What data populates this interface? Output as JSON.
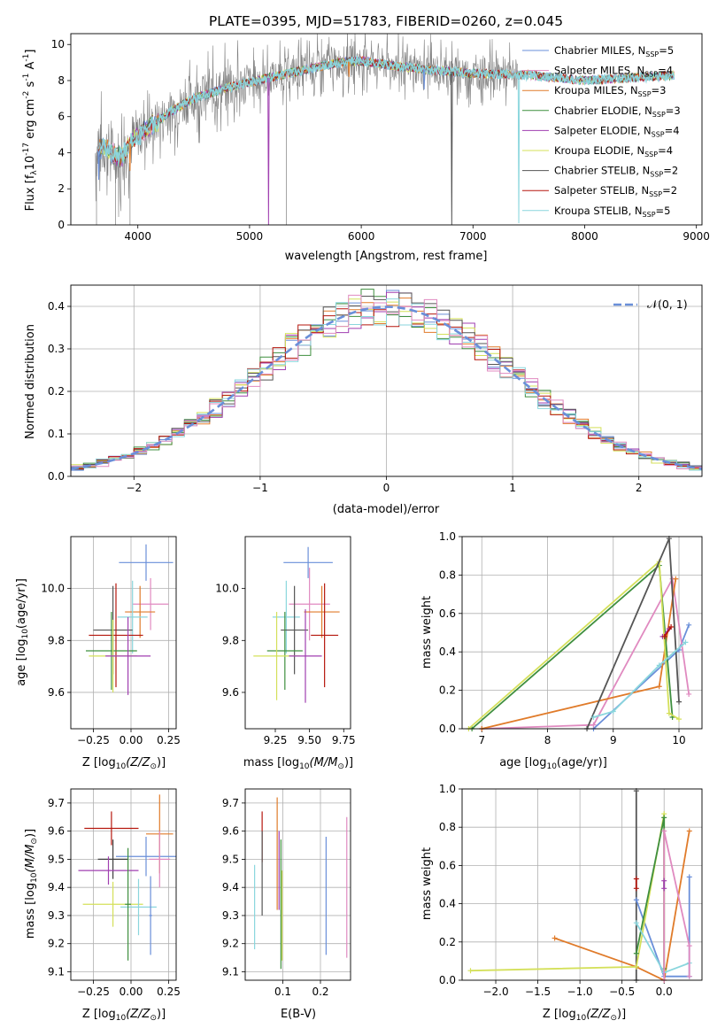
{
  "title": "PLATE=0395, MJD=51783, FIBERID=0260, z=0.045",
  "colors": [
    "#6a8fd9",
    "#e07b2a",
    "#3f8f3f",
    "#a03fb0",
    "#d4e05a",
    "#555555",
    "#b5170e",
    "#8ad6dd",
    "#e08ac0"
  ],
  "chart_data": [
    {
      "id": "spectrum",
      "type": "line",
      "title": "PLATE=0395, MJD=51783, FIBERID=0260, z=0.045",
      "xlabel": "wavelength [Angstrom, rest frame]",
      "ylabel_main": "Flux [f",
      "ylabel_sub1": "λ",
      "ylabel_mid": "10",
      "ylabel_sup1": "-17",
      "ylabel_tail1": " erg cm",
      "ylabel_sup2": "-2",
      "ylabel_tail2": " s",
      "ylabel_sup3": "-1",
      "ylabel_tail3": " A",
      "ylabel_sup4": "-1",
      "ylabel_end": "]",
      "xlim": [
        3400,
        9050
      ],
      "ylim": [
        0,
        10.6
      ],
      "xticks": [
        "4000",
        "5000",
        "6000",
        "7000",
        "8000",
        "9000"
      ],
      "xtick_values": [
        4000,
        5000,
        6000,
        7000,
        8000,
        9000
      ],
      "yticks": [
        "0",
        "2",
        "4",
        "6",
        "8",
        "10"
      ],
      "ytick_values": [
        0,
        2,
        4,
        6,
        8,
        10
      ],
      "data_color": "#808080",
      "data_anchors": [
        [
          3620,
          4.0
        ],
        [
          3700,
          4.3
        ],
        [
          3850,
          3.7
        ],
        [
          3950,
          4.7
        ],
        [
          4100,
          5.4
        ],
        [
          4300,
          6.3
        ],
        [
          4500,
          7.0
        ],
        [
          4800,
          7.6
        ],
        [
          5200,
          8.2
        ],
        [
          5500,
          8.6
        ],
        [
          5800,
          9.0
        ],
        [
          6000,
          9.1
        ],
        [
          6300,
          8.8
        ],
        [
          6600,
          8.6
        ],
        [
          7000,
          8.4
        ],
        [
          7500,
          8.3
        ],
        [
          8000,
          8.0
        ],
        [
          8500,
          8.2
        ],
        [
          8800,
          8.3
        ]
      ],
      "model_dips": [
        [
          3650,
          2.5
        ],
        [
          3930,
          3.0
        ],
        [
          5170,
          0.0
        ],
        [
          6810,
          0.0
        ],
        [
          7410,
          0.1
        ],
        [
          6563,
          7.5
        ],
        [
          5890,
          8.2
        ]
      ],
      "legend": [
        {
          "name_start": "Chabrier MILES, N",
          "sub": "SSP",
          "name_end": "=5",
          "color": "#6a8fd9"
        },
        {
          "name_start": "Salpeter MILES, N",
          "sub": "SSP",
          "name_end": "=4",
          "color": "#e08ac0"
        },
        {
          "name_start": "Kroupa MILES, N",
          "sub": "SSP",
          "name_end": "=3",
          "color": "#e07b2a"
        },
        {
          "name_start": "Chabrier ELODIE, N",
          "sub": "SSP",
          "name_end": "=3",
          "color": "#3f8f3f"
        },
        {
          "name_start": "Salpeter ELODIE, N",
          "sub": "SSP",
          "name_end": "=4",
          "color": "#a03fb0"
        },
        {
          "name_start": "Kroupa ELODIE, N",
          "sub": "SSP",
          "name_end": "=4",
          "color": "#d4e05a"
        },
        {
          "name_start": "Chabrier STELIB, N",
          "sub": "SSP",
          "name_end": "=2",
          "color": "#555555"
        },
        {
          "name_start": "Salpeter STELIB, N",
          "sub": "SSP",
          "name_end": "=2",
          "color": "#b5170e"
        },
        {
          "name_start": "Kroupa STELIB, N",
          "sub": "SSP",
          "name_end": "=5",
          "color": "#8ad6dd"
        }
      ]
    },
    {
      "id": "residuals",
      "type": "histogram",
      "xlabel": "(data-model)/error",
      "ylabel": "Normed distribution",
      "xlim": [
        -2.5,
        2.5
      ],
      "ylim": [
        0,
        0.45
      ],
      "xticks": [
        "−2",
        "−1",
        "0",
        "1",
        "2"
      ],
      "xtick_values": [
        -2,
        -1,
        0,
        1,
        2
      ],
      "yticks": [
        "0.0",
        "0.1",
        "0.2",
        "0.3",
        "0.4"
      ],
      "ytick_values": [
        0,
        0.1,
        0.2,
        0.3,
        0.4
      ],
      "bin_width": 0.1,
      "reference_label": "𝒩(0, 1)",
      "reference_color": "#6a8fd9"
    },
    {
      "id": "age-vs-Z",
      "type": "errorbar",
      "xlabel": "Z [log",
      "xlabel_sub": "10",
      "xlabel_end": "(Z/Z",
      "xlabel_sun": "⊙",
      "xlabel_close": ")]",
      "ylabel": "age  [log",
      "ylabel_sub": "10",
      "ylabel_end": "(age/yr)]",
      "xlim": [
        -0.4,
        0.3
      ],
      "ylim": [
        9.46,
        10.2
      ],
      "xticks": [
        "−0.25",
        "0.00",
        "0.25"
      ],
      "xtick_values": [
        -0.25,
        0.0,
        0.25
      ],
      "yticks": [
        "9.6",
        "9.8",
        "10.0"
      ],
      "ytick_values": [
        9.6,
        9.8,
        10.0
      ],
      "points": [
        {
          "x": 0.1,
          "y": 10.1,
          "xerr": 0.18,
          "yerr": 0.07,
          "color": "#6a8fd9"
        },
        {
          "x": 0.13,
          "y": 9.94,
          "xerr": 0.12,
          "yerr": 0.1,
          "color": "#e08ac0"
        },
        {
          "x": 0.06,
          "y": 9.91,
          "xerr": 0.1,
          "yerr": 0.1,
          "color": "#e07b2a"
        },
        {
          "x": 0.01,
          "y": 9.89,
          "xerr": 0.1,
          "yerr": 0.14,
          "color": "#8ad6dd"
        },
        {
          "x": -0.12,
          "y": 9.84,
          "xerr": 0.13,
          "yerr": 0.17,
          "color": "#555555"
        },
        {
          "x": -0.1,
          "y": 9.82,
          "xerr": 0.18,
          "yerr": 0.2,
          "color": "#b5170e"
        },
        {
          "x": -0.13,
          "y": 9.76,
          "xerr": 0.17,
          "yerr": 0.15,
          "color": "#3f8f3f"
        },
        {
          "x": -0.12,
          "y": 9.74,
          "xerr": 0.16,
          "yerr": 0.14,
          "color": "#d4e05a"
        },
        {
          "x": -0.02,
          "y": 9.74,
          "xerr": 0.15,
          "yerr": 0.15,
          "color": "#a03fb0"
        }
      ]
    },
    {
      "id": "age-vs-mass",
      "type": "errorbar",
      "xlabel": "mass [log",
      "xlabel_sub": "10",
      "xlabel_end": "(M/M",
      "xlabel_sun": "⊙",
      "xlabel_close": ")]",
      "xlim": [
        9.03,
        9.8
      ],
      "ylim": [
        9.46,
        10.2
      ],
      "xticks": [
        "9.25",
        "9.50",
        "9.75"
      ],
      "xtick_values": [
        9.25,
        9.5,
        9.75
      ],
      "yticks": [
        "9.6",
        "9.8",
        "10.0"
      ],
      "ytick_values": [
        9.6,
        9.8,
        10.0
      ],
      "points": [
        {
          "x": 9.49,
          "y": 10.1,
          "xerr": 0.18,
          "yerr": 0.06,
          "color": "#6a8fd9"
        },
        {
          "x": 9.5,
          "y": 9.94,
          "xerr": 0.15,
          "yerr": 0.14,
          "color": "#e08ac0"
        },
        {
          "x": 9.59,
          "y": 9.91,
          "xerr": 0.13,
          "yerr": 0.1,
          "color": "#e07b2a"
        },
        {
          "x": 9.33,
          "y": 9.89,
          "xerr": 0.1,
          "yerr": 0.14,
          "color": "#8ad6dd"
        },
        {
          "x": 9.39,
          "y": 9.84,
          "xerr": 0.1,
          "yerr": 0.17,
          "color": "#555555"
        },
        {
          "x": 9.61,
          "y": 9.82,
          "xerr": 0.1,
          "yerr": 0.2,
          "color": "#b5170e"
        },
        {
          "x": 9.32,
          "y": 9.76,
          "xerr": 0.13,
          "yerr": 0.15,
          "color": "#3f8f3f"
        },
        {
          "x": 9.26,
          "y": 9.74,
          "xerr": 0.17,
          "yerr": 0.17,
          "color": "#d4e05a"
        },
        {
          "x": 9.47,
          "y": 9.74,
          "xerr": 0.12,
          "yerr": 0.18,
          "color": "#a03fb0"
        }
      ]
    },
    {
      "id": "weight-vs-age",
      "type": "line",
      "xlabel": "age  [log",
      "xlabel_sub": "10",
      "xlabel_end": "(age/yr)]",
      "ylabel": "mass weight",
      "xlim": [
        6.7,
        10.35
      ],
      "ylim": [
        0,
        1.0
      ],
      "xticks": [
        "7",
        "8",
        "9",
        "10"
      ],
      "xtick_values": [
        7,
        8,
        9,
        10
      ],
      "yticks": [
        "0.0",
        "0.2",
        "0.4",
        "0.6",
        "0.8",
        "1.0"
      ],
      "ytick_values": [
        0,
        0.2,
        0.4,
        0.6,
        0.8,
        1.0
      ],
      "series": [
        {
          "color": "#6a8fd9",
          "points": [
            [
              8.7,
              0.0
            ],
            [
              10.0,
              0.41
            ],
            [
              10.15,
              0.54
            ]
          ]
        },
        {
          "color": "#e08ac0",
          "points": [
            [
              7.0,
              0.0
            ],
            [
              8.7,
              0.02
            ],
            [
              9.9,
              0.78
            ],
            [
              10.15,
              0.18
            ]
          ]
        },
        {
          "color": "#e07b2a",
          "points": [
            [
              7.0,
              0.0
            ],
            [
              9.7,
              0.22
            ],
            [
              9.95,
              0.78
            ]
          ]
        },
        {
          "color": "#3f8f3f",
          "points": [
            [
              6.85,
              0.0
            ],
            [
              9.7,
              0.85
            ],
            [
              9.9,
              0.06
            ]
          ]
        },
        {
          "color": "#a03fb0",
          "points": [
            [
              9.85,
              0.52
            ],
            [
              9.75,
              0.48
            ]
          ]
        },
        {
          "color": "#d4e05a",
          "points": [
            [
              6.8,
              0.0
            ],
            [
              9.7,
              0.87
            ],
            [
              9.85,
              0.08
            ],
            [
              10.0,
              0.05
            ]
          ]
        },
        {
          "color": "#555555",
          "points": [
            [
              8.6,
              0.0
            ],
            [
              9.85,
              0.99
            ],
            [
              10.0,
              0.14
            ]
          ]
        },
        {
          "color": "#b5170e",
          "points": [
            [
              9.78,
              0.48
            ],
            [
              9.88,
              0.53
            ]
          ]
        },
        {
          "color": "#8ad6dd",
          "points": [
            [
              8.7,
              0.06
            ],
            [
              9.0,
              0.09
            ],
            [
              9.7,
              0.33
            ],
            [
              10.1,
              0.45
            ]
          ]
        }
      ]
    },
    {
      "id": "mass-vs-Z",
      "type": "errorbar",
      "xlabel": "Z [log",
      "xlabel_sub": "10",
      "xlabel_end": "(Z/Z",
      "xlabel_sun": "⊙",
      "xlabel_close": ")]",
      "ylabel": "mass [log",
      "ylabel_sub": "10",
      "ylabel_end": "(M/M",
      "ylabel_sun": "⊙",
      "ylabel_close": ")]",
      "xlim": [
        -0.4,
        0.3
      ],
      "ylim": [
        9.07,
        9.75
      ],
      "xticks": [
        "−0.25",
        "0.00",
        "0.25"
      ],
      "xtick_values": [
        -0.25,
        0.0,
        0.25
      ],
      "yticks": [
        "9.1",
        "9.2",
        "9.3",
        "9.4",
        "9.5",
        "9.6",
        "9.7"
      ],
      "ytick_values": [
        9.1,
        9.2,
        9.3,
        9.4,
        9.5,
        9.6,
        9.7
      ],
      "points": [
        {
          "x": -0.13,
          "y": 9.61,
          "xerr": 0.18,
          "yerr": 0.06,
          "color": "#b5170e"
        },
        {
          "x": 0.19,
          "y": 9.59,
          "xerr": 0.09,
          "yerr": 0.14,
          "color": "#e07b2a"
        },
        {
          "x": 0.1,
          "y": 9.51,
          "xerr": 0.2,
          "yerr": 0.07,
          "color": "#6a8fd9"
        },
        {
          "x": -0.12,
          "y": 9.5,
          "xerr": 0.1,
          "yerr": 0.07,
          "color": "#3f3f3f"
        },
        {
          "x": -0.15,
          "y": 9.46,
          "xerr": 0.2,
          "yerr": 0.05,
          "color": "#a03fb0"
        },
        {
          "x": 0.19,
          "y": 9.5,
          "xerr": 0.07,
          "yerr": 0.1,
          "color": "#e08ac0"
        },
        {
          "x": -0.12,
          "y": 9.34,
          "xerr": 0.2,
          "yerr": 0.08,
          "color": "#d4e05a"
        },
        {
          "x": 0.05,
          "y": 9.33,
          "xerr": 0.12,
          "yerr": 0.1,
          "color": "#8ad6dd"
        },
        {
          "x": -0.02,
          "y": 9.34,
          "xerr": 0.02,
          "yerr": 0.2,
          "color": "#3f8f3f"
        },
        {
          "x": 0.13,
          "y": 9.3,
          "xerr": 0.01,
          "yerr": 0.14,
          "color": "#6a8fd9"
        }
      ]
    },
    {
      "id": "mass-vs-EBV",
      "type": "errorbar",
      "xlabel": "E(B-V)",
      "xlim": [
        0.0,
        0.28
      ],
      "ylim": [
        9.07,
        9.75
      ],
      "xticks": [
        "0.1",
        "0.2"
      ],
      "xtick_values": [
        0.1,
        0.2
      ],
      "yticks": [
        "9.1",
        "9.2",
        "9.3",
        "9.4",
        "9.5",
        "9.6",
        "9.7"
      ],
      "ytick_values": [
        9.1,
        9.2,
        9.3,
        9.4,
        9.5,
        9.6,
        9.7
      ],
      "points": [
        {
          "x": 0.045,
          "y": 9.58,
          "xerr": 0,
          "yerr": 0.09,
          "color": "#b5170e"
        },
        {
          "x": 0.045,
          "y": 9.45,
          "xerr": 0,
          "yerr": 0.15,
          "color": "#555555"
        },
        {
          "x": 0.025,
          "y": 9.33,
          "xerr": 0,
          "yerr": 0.15,
          "color": "#8ad6dd"
        },
        {
          "x": 0.085,
          "y": 9.52,
          "xerr": 0,
          "yerr": 0.2,
          "color": "#e07b2a"
        },
        {
          "x": 0.09,
          "y": 9.46,
          "xerr": 0,
          "yerr": 0.14,
          "color": "#a03fb0"
        },
        {
          "x": 0.095,
          "y": 9.34,
          "xerr": 0,
          "yerr": 0.23,
          "color": "#3f8f3f"
        },
        {
          "x": 0.098,
          "y": 9.3,
          "xerr": 0,
          "yerr": 0.16,
          "color": "#d4e05a"
        },
        {
          "x": 0.215,
          "y": 9.37,
          "xerr": 0,
          "yerr": 0.21,
          "color": "#6a8fd9"
        },
        {
          "x": 0.27,
          "y": 9.4,
          "xerr": 0,
          "yerr": 0.25,
          "color": "#e08ac0"
        }
      ]
    },
    {
      "id": "weight-vs-Z",
      "type": "line",
      "xlabel": "Z [log",
      "xlabel_sub": "10",
      "xlabel_end": "(Z/Z",
      "xlabel_sun": "⊙",
      "xlabel_close": ")]",
      "ylabel": "mass weight",
      "xlim": [
        -2.4,
        0.45
      ],
      "ylim": [
        0,
        1.0
      ],
      "xticks": [
        "−2.0",
        "−1.5",
        "−1.0",
        "−0.5",
        "0.0"
      ],
      "xtick_values": [
        -2.0,
        -1.5,
        -1.0,
        -0.5,
        0.0
      ],
      "yticks": [
        "0.0",
        "0.2",
        "0.4",
        "0.6",
        "0.8",
        "1.0"
      ],
      "ytick_values": [
        0,
        0.2,
        0.4,
        0.6,
        0.8,
        1.0
      ],
      "series": [
        {
          "color": "#555555",
          "points": [
            [
              -0.33,
              0.0
            ],
            [
              -0.33,
              0.99
            ]
          ]
        },
        {
          "color": "#b5170e",
          "points": [
            [
              -0.33,
              0.48
            ],
            [
              -0.33,
              0.53
            ]
          ]
        },
        {
          "color": "#6a8fd9",
          "points": [
            [
              -0.33,
              0.42
            ],
            [
              0.0,
              0.02
            ],
            [
              0.3,
              0.02
            ],
            [
              0.3,
              0.54
            ]
          ]
        },
        {
          "color": "#e07b2a",
          "points": [
            [
              -1.3,
              0.22
            ],
            [
              -0.33,
              0.07
            ],
            [
              0.0,
              0.0
            ],
            [
              0.3,
              0.78
            ]
          ]
        },
        {
          "color": "#d4e05a",
          "points": [
            [
              -2.3,
              0.05
            ],
            [
              -0.33,
              0.07
            ],
            [
              0.0,
              0.87
            ],
            [
              0.0,
              0.05
            ]
          ]
        },
        {
          "color": "#3f8f3f",
          "points": [
            [
              -0.33,
              0.14
            ],
            [
              0.0,
              0.85
            ],
            [
              0.0,
              0.06
            ]
          ]
        },
        {
          "color": "#8ad6dd",
          "points": [
            [
              -0.33,
              0.3
            ],
            [
              0.0,
              0.04
            ],
            [
              0.3,
              0.09
            ]
          ]
        },
        {
          "color": "#e08ac0",
          "points": [
            [
              0.0,
              0.0
            ],
            [
              0.0,
              0.78
            ],
            [
              0.3,
              0.18
            ],
            [
              0.3,
              0.02
            ]
          ]
        },
        {
          "color": "#a03fb0",
          "points": [
            [
              0.0,
              0.52
            ],
            [
              0.0,
              0.48
            ]
          ]
        }
      ]
    }
  ]
}
